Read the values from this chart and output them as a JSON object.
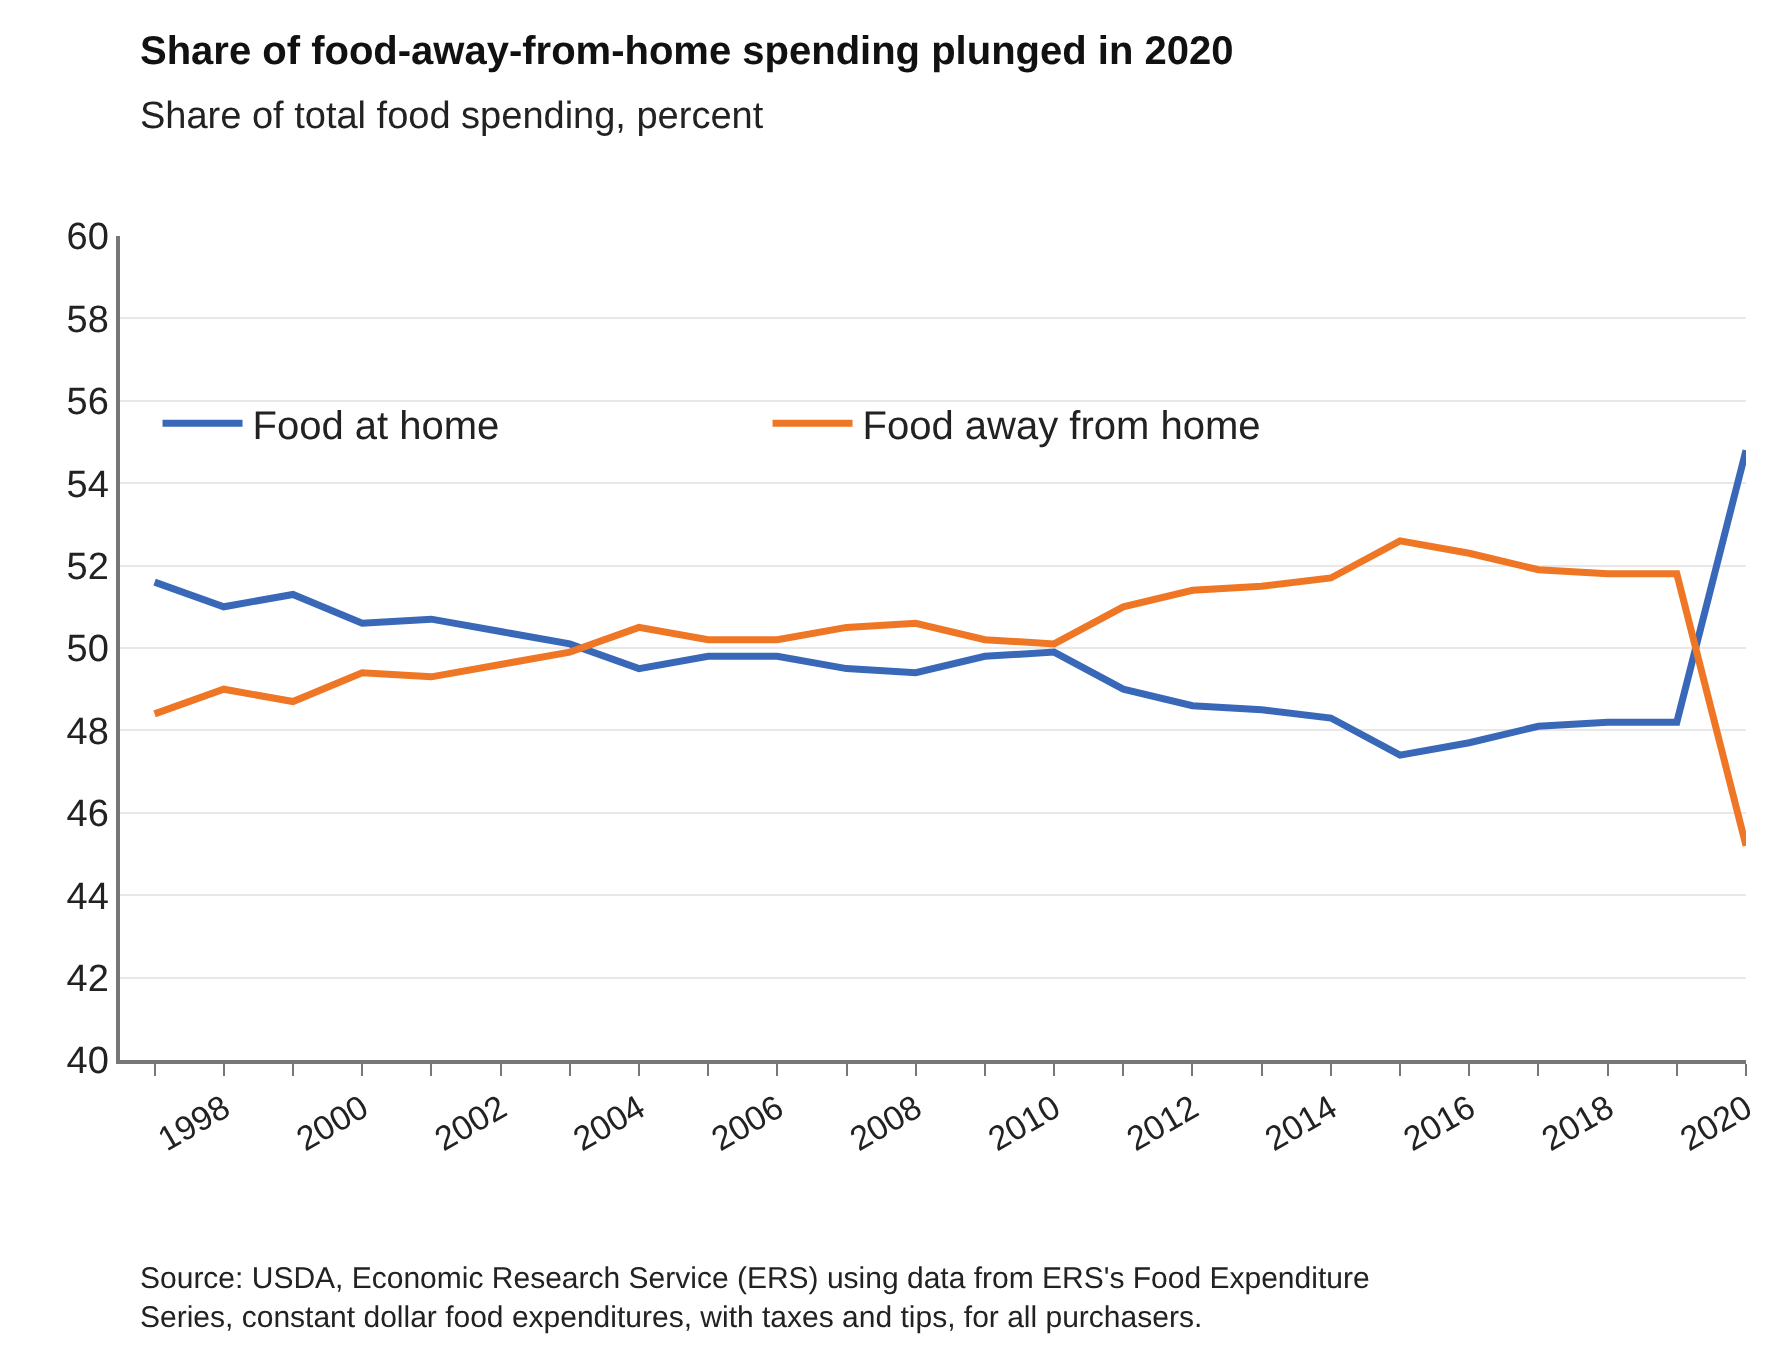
{
  "chart_data": {
    "type": "line",
    "title": "Share of food-away-from-home spending plunged in 2020",
    "subtitle": "Share of total food spending, percent",
    "annotations": [
      "Source: USDA, Economic Research Service (ERS) using data from ERS's Food Expenditure\nSeries, constant dollar food expenditures, with taxes and tips, for all purchasers."
    ],
    "x": [
      1997,
      1998,
      1999,
      2000,
      2001,
      2002,
      2003,
      2004,
      2005,
      2006,
      2007,
      2008,
      2009,
      2010,
      2011,
      2012,
      2013,
      2014,
      2015,
      2016,
      2017,
      2018,
      2019,
      2020
    ],
    "series": [
      {
        "name": "Food at home",
        "color": "#3a68b8",
        "values": [
          51.6,
          51.0,
          51.3,
          50.6,
          50.7,
          50.4,
          50.1,
          49.5,
          49.8,
          49.8,
          49.5,
          49.4,
          49.8,
          49.9,
          49.0,
          48.6,
          48.5,
          48.3,
          47.4,
          47.7,
          48.1,
          48.2,
          48.2,
          54.8
        ]
      },
      {
        "name": "Food away from home",
        "color": "#ee7625",
        "values": [
          48.4,
          49.0,
          48.7,
          49.4,
          49.3,
          49.6,
          49.9,
          50.5,
          50.2,
          50.2,
          50.5,
          50.6,
          50.2,
          50.1,
          51.0,
          51.4,
          51.5,
          51.7,
          52.6,
          52.3,
          51.9,
          51.8,
          51.8,
          45.2
        ]
      }
    ],
    "xlim": [
      1996.5,
      2020
    ],
    "xticks": [
      {
        "value": 1997,
        "label": null
      },
      1998,
      {
        "value": 1999,
        "label": null
      },
      2000,
      {
        "value": 2001,
        "label": null
      },
      2002,
      {
        "value": 2003,
        "label": null
      },
      2004,
      {
        "value": 2005,
        "label": null
      },
      2006,
      {
        "value": 2007,
        "label": null
      },
      2008,
      {
        "value": 2009,
        "label": null
      },
      2010,
      {
        "value": 2011,
        "label": null
      },
      2012,
      {
        "value": 2013,
        "label": null
      },
      2014,
      {
        "value": 2015,
        "label": null
      },
      2016,
      {
        "value": 2017,
        "label": null
      },
      2018,
      {
        "value": 2019,
        "label": null
      },
      2020
    ],
    "ylim": [
      40,
      60
    ],
    "yticks": [
      40,
      42,
      44,
      46,
      48,
      50,
      52,
      54,
      56,
      58,
      60
    ],
    "grid": "y",
    "legend": "top left",
    "line_style": "solid"
  }
}
